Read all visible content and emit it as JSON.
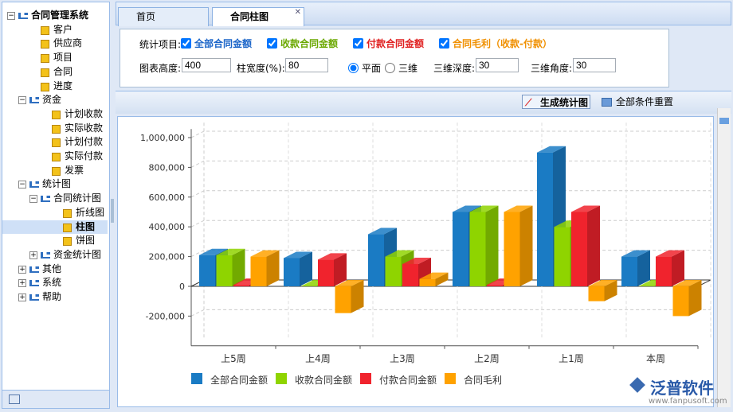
{
  "tree": {
    "items": [
      "合同管理系统",
      "客户",
      "供应商",
      "项目",
      "合同",
      "进度",
      "资金",
      "计划收款",
      "实际收款",
      "计划付款",
      "实际付款",
      "发票",
      "统计图",
      "合同统计图",
      "折线图",
      "柱图",
      "饼图",
      "资金统计图",
      "其他",
      "系统",
      "帮助"
    ]
  },
  "tabs": [
    "首页",
    "合同柱图"
  ],
  "form": {
    "items_label": "统计项目:",
    "checks": [
      "全部合同金额",
      "收款合同金额",
      "付款合同金额",
      "合同毛利（收款-付款）"
    ],
    "height_label": "图表高度:",
    "height": 400,
    "width_label": "柱宽度(%):",
    "width": 80,
    "mode_flat": "平面",
    "mode_3d": "三维",
    "depth_label": "三维深度:",
    "depth": 30,
    "angle_label": "三维角度:",
    "angle": 30
  },
  "toolbar": {
    "generate": "生成统计图",
    "reset": "全部条件重置"
  },
  "logo": {
    "name": "泛普软件",
    "url": "www.fanpusoft.com"
  },
  "chart_data": {
    "type": "bar3d",
    "categories": [
      "上5周",
      "上4周",
      "上3周",
      "上2周",
      "上1周",
      "本周"
    ],
    "series": [
      {
        "name": "全部合同金额",
        "color": "#1a7bc4",
        "values": [
          210000,
          190000,
          350000,
          500000,
          900000,
          200000
        ]
      },
      {
        "name": "收款合同金额",
        "color": "#8fd400",
        "values": [
          210000,
          0,
          200000,
          500000,
          400000,
          0
        ]
      },
      {
        "name": "付款合同金额",
        "color": "#f0232d",
        "values": [
          10000,
          180000,
          150000,
          10000,
          500000,
          200000
        ]
      },
      {
        "name": "合同毛利",
        "color": "#ffa200",
        "values": [
          200000,
          -180000,
          50000,
          500000,
          -100000,
          -200000
        ]
      }
    ],
    "ylim": [
      -400000,
      1100000
    ],
    "yticks": [
      {
        "value": -200000,
        "label": "-200,000"
      },
      0,
      {
        "value": 200000,
        "label": "200,000"
      },
      {
        "value": 400000,
        "label": "400,000"
      },
      {
        "value": 600000,
        "label": "600,000"
      },
      {
        "value": 800000,
        "label": "800,000"
      },
      {
        "value": 1000000,
        "label": "1,000,000"
      }
    ],
    "grid": true
  }
}
